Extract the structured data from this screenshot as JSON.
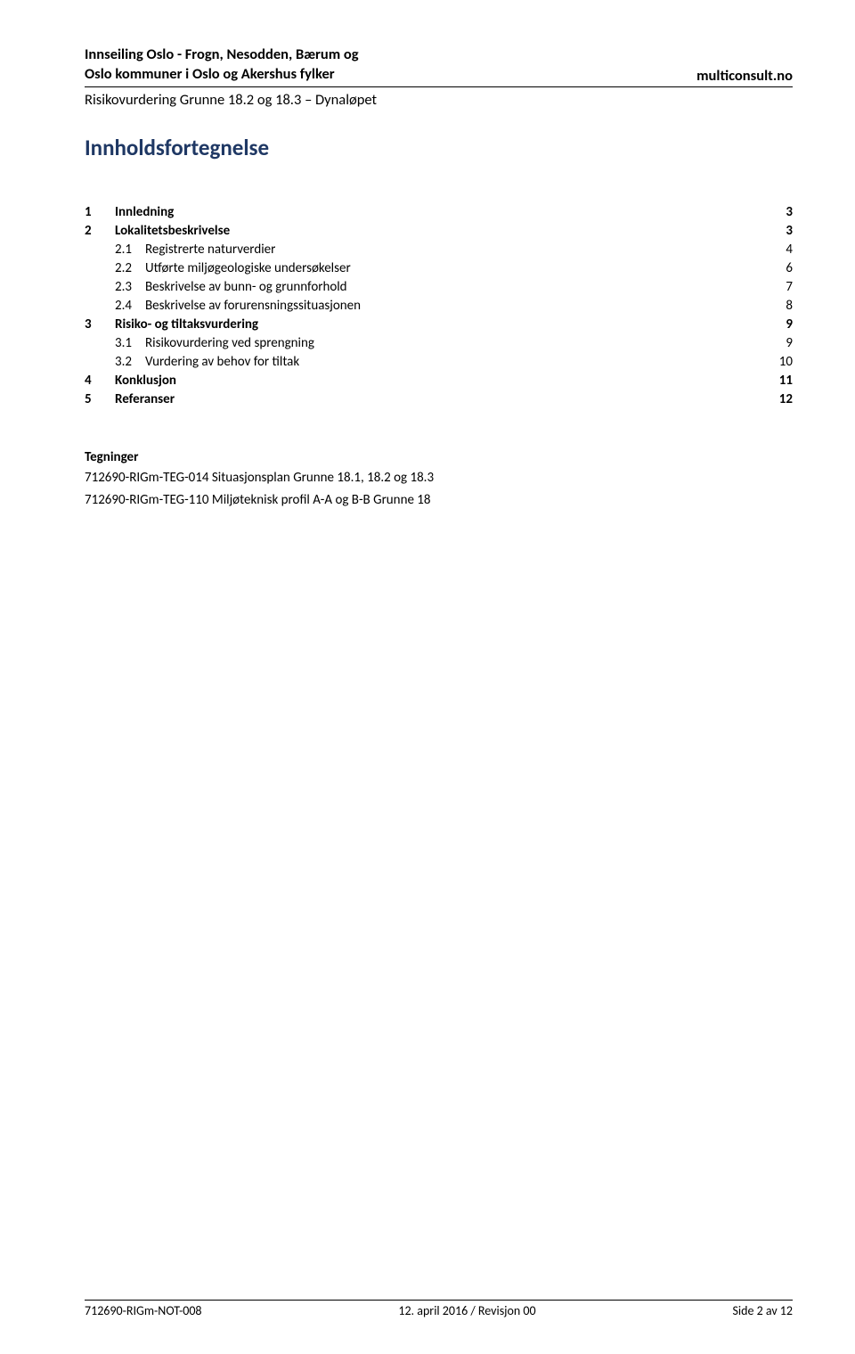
{
  "header": {
    "left_line1": "Innseiling Oslo - Frogn, Nesodden, Bærum og",
    "left_line2": "Oslo kommuner i Oslo og Akershus fylker",
    "right": "multiconsult.no",
    "sub": "Risikovurdering Grunne 18.2 og 18.3 – Dynaløpet"
  },
  "title": "Innholdsfortegnelse",
  "toc": [
    {
      "level": 1,
      "num": "1",
      "label": "Innledning",
      "page": "3"
    },
    {
      "level": 1,
      "num": "2",
      "label": "Lokalitetsbeskrivelse",
      "page": "3"
    },
    {
      "level": 2,
      "num": "2.1",
      "label": "Registrerte naturverdier",
      "page": "4"
    },
    {
      "level": 2,
      "num": "2.2",
      "label": "Utførte miljøgeologiske undersøkelser",
      "page": "6"
    },
    {
      "level": 2,
      "num": "2.3",
      "label": "Beskrivelse av bunn- og grunnforhold",
      "page": "7"
    },
    {
      "level": 2,
      "num": "2.4",
      "label": "Beskrivelse av forurensningssituasjonen",
      "page": "8"
    },
    {
      "level": 1,
      "num": "3",
      "label": "Risiko- og tiltaksvurdering",
      "page": "9"
    },
    {
      "level": 2,
      "num": "3.1",
      "label": "Risikovurdering ved sprengning",
      "page": "9"
    },
    {
      "level": 2,
      "num": "3.2",
      "label": "Vurdering av behov for tiltak",
      "page": "10"
    },
    {
      "level": 1,
      "num": "4",
      "label": "Konklusjon",
      "page": "11"
    },
    {
      "level": 1,
      "num": "5",
      "label": "Referanser",
      "page": "12"
    }
  ],
  "drawings": {
    "heading": "Tegninger",
    "line1": "712690-RIGm-TEG-014 Situasjonsplan Grunne 18.1, 18.2 og 18.3",
    "line2": "712690-RIGm-TEG-110 Miljøteknisk profil A-A og B-B Grunne 18"
  },
  "footer": {
    "left": "712690-RIGm-NOT-008",
    "center": "12. april 2016 / Revisjon 00",
    "right": "Side 2 av 12"
  },
  "style": {
    "title_color": "#1f3864",
    "text_color": "#000000",
    "background": "#ffffff"
  }
}
